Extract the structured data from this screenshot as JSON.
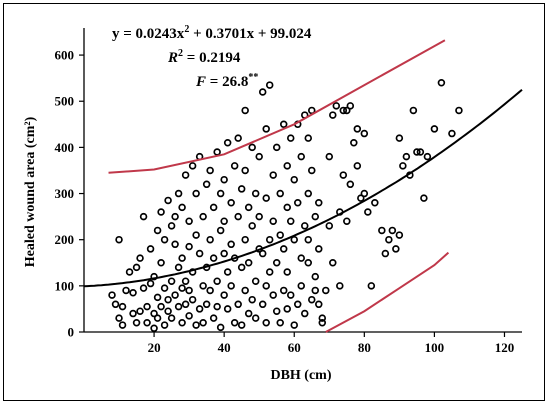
{
  "chart_data": {
    "type": "scatter",
    "title": "",
    "xlabel": "DBH (cm)",
    "ylabel": "Healed wound area (cm²)",
    "xlim": [
      0,
      125
    ],
    "ylim": [
      0,
      650
    ],
    "xticks": [
      20,
      40,
      60,
      80,
      100,
      120
    ],
    "yticks": [
      0,
      100,
      200,
      300,
      400,
      500,
      600
    ],
    "grid": false,
    "legend": "none",
    "annotations": {
      "equation_lead": "y = 0.0243x",
      "equation_sup": "2",
      "equation_tail": " + 0.3701x + 99.024",
      "r2_label": "R",
      "r2_sup": "2",
      "r2_value": " = 0.2194",
      "f_label": "F",
      "f_value": " = 26.8",
      "f_sup": "**"
    },
    "fit_curve": {
      "a": 0.0243,
      "b": 0.3701,
      "c": 99.024,
      "x_range": [
        0,
        125
      ],
      "color": "#000000"
    },
    "upper_band": {
      "points": [
        [
          7,
          345
        ],
        [
          20,
          352
        ],
        [
          40,
          385
        ],
        [
          60,
          450
        ],
        [
          80,
          535
        ],
        [
          103,
          632
        ]
      ],
      "color": "#c0384a"
    },
    "lower_band": {
      "points": [
        [
          69,
          0
        ],
        [
          80,
          45
        ],
        [
          90,
          95
        ],
        [
          100,
          145
        ],
        [
          104,
          172
        ]
      ],
      "color": "#c0384a"
    },
    "marker_color": "#000000",
    "series": [
      {
        "x": [
          8,
          9,
          10,
          10,
          11,
          11,
          12,
          13,
          14,
          14,
          15,
          15,
          16,
          16,
          17,
          17,
          18,
          18,
          19,
          19,
          20,
          20,
          20,
          21,
          21,
          21,
          22,
          22,
          22,
          23,
          23,
          23,
          24,
          24,
          24,
          25,
          25,
          25,
          26,
          26,
          26,
          27,
          27,
          27,
          28,
          28,
          28,
          28,
          29,
          29,
          29,
          30,
          30,
          30,
          30,
          31,
          31,
          31,
          32,
          32,
          32,
          33,
          33,
          33,
          34,
          34,
          34,
          35,
          35,
          35,
          36,
          36,
          36,
          37,
          37,
          37,
          38,
          38,
          38,
          39,
          39,
          39,
          40,
          40,
          40,
          40,
          41,
          41,
          41,
          42,
          42,
          42,
          43,
          43,
          43,
          44,
          44,
          44,
          45,
          45,
          45,
          46,
          46,
          46,
          46,
          47,
          47,
          47,
          48,
          48,
          48,
          49,
          49,
          49,
          50,
          50,
          50,
          51,
          51,
          51,
          52,
          52,
          52,
          52,
          53,
          53,
          53,
          54,
          54,
          54,
          55,
          55,
          55,
          56,
          56,
          56,
          57,
          57,
          57,
          58,
          58,
          58,
          58,
          59,
          59,
          59,
          60,
          60,
          60,
          61,
          61,
          61,
          62,
          62,
          62,
          63,
          63,
          63,
          64,
          64,
          64,
          64,
          65,
          65,
          65,
          66,
          66,
          66,
          67,
          67,
          67,
          68,
          68,
          69,
          70,
          70,
          71,
          71,
          72,
          73,
          73,
          74,
          74,
          75,
          75,
          76,
          76,
          77,
          78,
          78,
          79,
          80,
          80,
          81,
          82,
          83,
          85,
          86,
          87,
          88,
          89,
          90,
          90,
          91,
          92,
          93,
          94,
          95,
          96,
          97,
          98,
          100,
          102,
          105,
          107
        ],
        "y": [
          80,
          60,
          200,
          30,
          55,
          15,
          90,
          130,
          40,
          85,
          140,
          20,
          160,
          45,
          250,
          95,
          55,
          20,
          105,
          180,
          40,
          120,
          8,
          220,
          75,
          30,
          150,
          55,
          260,
          95,
          200,
          15,
          285,
          70,
          45,
          110,
          230,
          30,
          190,
          80,
          250,
          300,
          55,
          140,
          20,
          95,
          160,
          270,
          60,
          340,
          110,
          35,
          185,
          90,
          240,
          360,
          70,
          130,
          15,
          210,
          300,
          50,
          380,
          170,
          100,
          250,
          20,
          320,
          140,
          60,
          200,
          350,
          90,
          30,
          270,
          160,
          110,
          390,
          55,
          220,
          10,
          300,
          170,
          330,
          80,
          240,
          410,
          130,
          50,
          190,
          280,
          100,
          360,
          20,
          160,
          420,
          60,
          250,
          140,
          310,
          15,
          200,
          480,
          90,
          350,
          40,
          270,
          150,
          230,
          70,
          400,
          110,
          30,
          300,
          180,
          250,
          380,
          60,
          170,
          520,
          100,
          290,
          20,
          440,
          200,
          130,
          535,
          80,
          340,
          240,
          45,
          150,
          400,
          210,
          20,
          300,
          90,
          450,
          180,
          270,
          50,
          360,
          130,
          420,
          240,
          80,
          330,
          15,
          200,
          450,
          60,
          280,
          160,
          380,
          100,
          230,
          470,
          40,
          300,
          150,
          420,
          200,
          70,
          480,
          350,
          120,
          250,
          90,
          180,
          60,
          280,
          30,
          20,
          90,
          230,
          380,
          150,
          470,
          490,
          260,
          100,
          480,
          340,
          240,
          480,
          490,
          320,
          410,
          440,
          360,
          290,
          300,
          430,
          260,
          100,
          280,
          220,
          170,
          200,
          220,
          180,
          210,
          420,
          360,
          380,
          340,
          480,
          390,
          390,
          290,
          380,
          440,
          540,
          430,
          480
        ]
      }
    ]
  }
}
